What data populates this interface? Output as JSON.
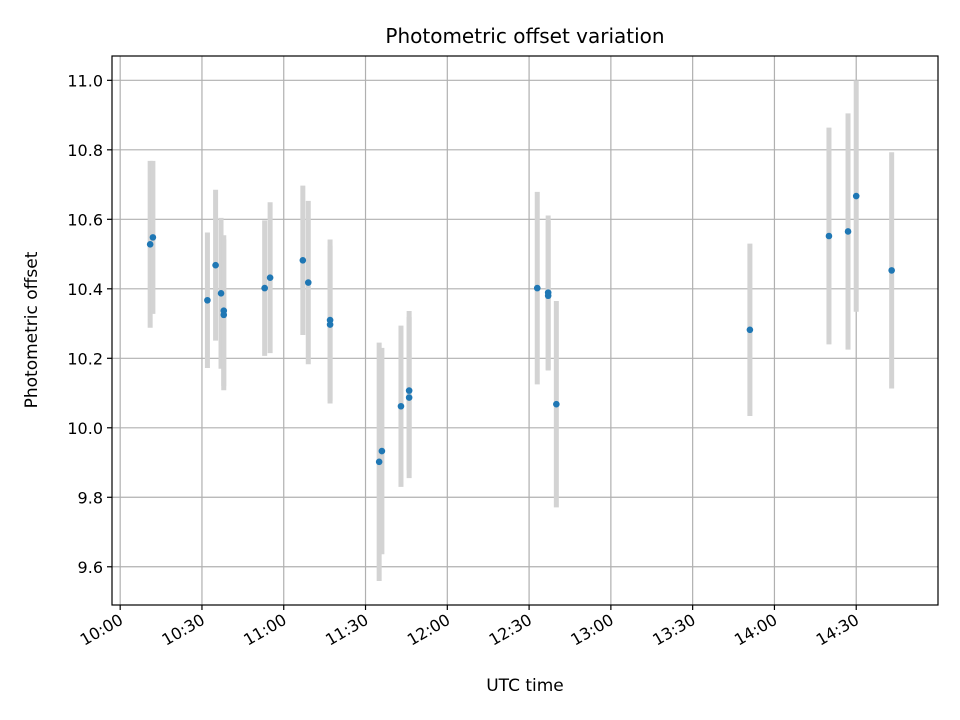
{
  "chart_data": {
    "type": "scatter",
    "title": "Photometric offset variation",
    "xlabel": "UTC time",
    "ylabel": "Photometric offset",
    "x_ticks": [
      "10:00",
      "10:30",
      "11:00",
      "11:30",
      "12:00",
      "12:30",
      "13:00",
      "13:30",
      "14:00",
      "14:30"
    ],
    "y_ticks": [
      "9.6",
      "9.8",
      "10.0",
      "10.2",
      "10.4",
      "10.6",
      "10.8",
      "11.0"
    ],
    "xlim": [
      "09:57",
      "15:00"
    ],
    "ylim": [
      9.49,
      11.07
    ],
    "grid": true,
    "colors": {
      "point": "#1f77b4",
      "errorbar": "#d3d3d3",
      "grid": "#b0b0b0"
    },
    "points": [
      {
        "x": "10:11",
        "y": 10.528,
        "err": 0.24
      },
      {
        "x": "10:12",
        "y": 10.548,
        "err": 0.22
      },
      {
        "x": "10:32",
        "y": 10.367,
        "err": 0.195
      },
      {
        "x": "10:35",
        "y": 10.468,
        "err": 0.217
      },
      {
        "x": "10:37",
        "y": 10.387,
        "err": 0.217
      },
      {
        "x": "10:38",
        "y": 10.337,
        "err": 0.217
      },
      {
        "x": "10:38",
        "y": 10.325,
        "err": 0.217
      },
      {
        "x": "10:53",
        "y": 10.402,
        "err": 0.195
      },
      {
        "x": "10:55",
        "y": 10.432,
        "err": 0.217
      },
      {
        "x": "11:07",
        "y": 10.482,
        "err": 0.215
      },
      {
        "x": "11:09",
        "y": 10.418,
        "err": 0.235
      },
      {
        "x": "11:17",
        "y": 10.31,
        "err": 0.232
      },
      {
        "x": "11:17",
        "y": 10.297,
        "err": 0.227
      },
      {
        "x": "11:35",
        "y": 9.902,
        "err": 0.343
      },
      {
        "x": "11:36",
        "y": 9.933,
        "err": 0.297
      },
      {
        "x": "11:43",
        "y": 10.062,
        "err": 0.232
      },
      {
        "x": "11:46",
        "y": 10.107,
        "err": 0.229
      },
      {
        "x": "11:46",
        "y": 10.087,
        "err": 0.232
      },
      {
        "x": "12:33",
        "y": 10.402,
        "err": 0.277
      },
      {
        "x": "12:37",
        "y": 10.389,
        "err": 0.222
      },
      {
        "x": "12:37",
        "y": 10.38,
        "err": 0.215
      },
      {
        "x": "12:40",
        "y": 10.068,
        "err": 0.297
      },
      {
        "x": "13:51",
        "y": 10.282,
        "err": 0.248
      },
      {
        "x": "14:20",
        "y": 10.552,
        "err": 0.312
      },
      {
        "x": "14:27",
        "y": 10.565,
        "err": 0.34
      },
      {
        "x": "14:30",
        "y": 10.667,
        "err": 0.333
      },
      {
        "x": "14:43",
        "y": 10.453,
        "err": 0.34
      }
    ]
  }
}
